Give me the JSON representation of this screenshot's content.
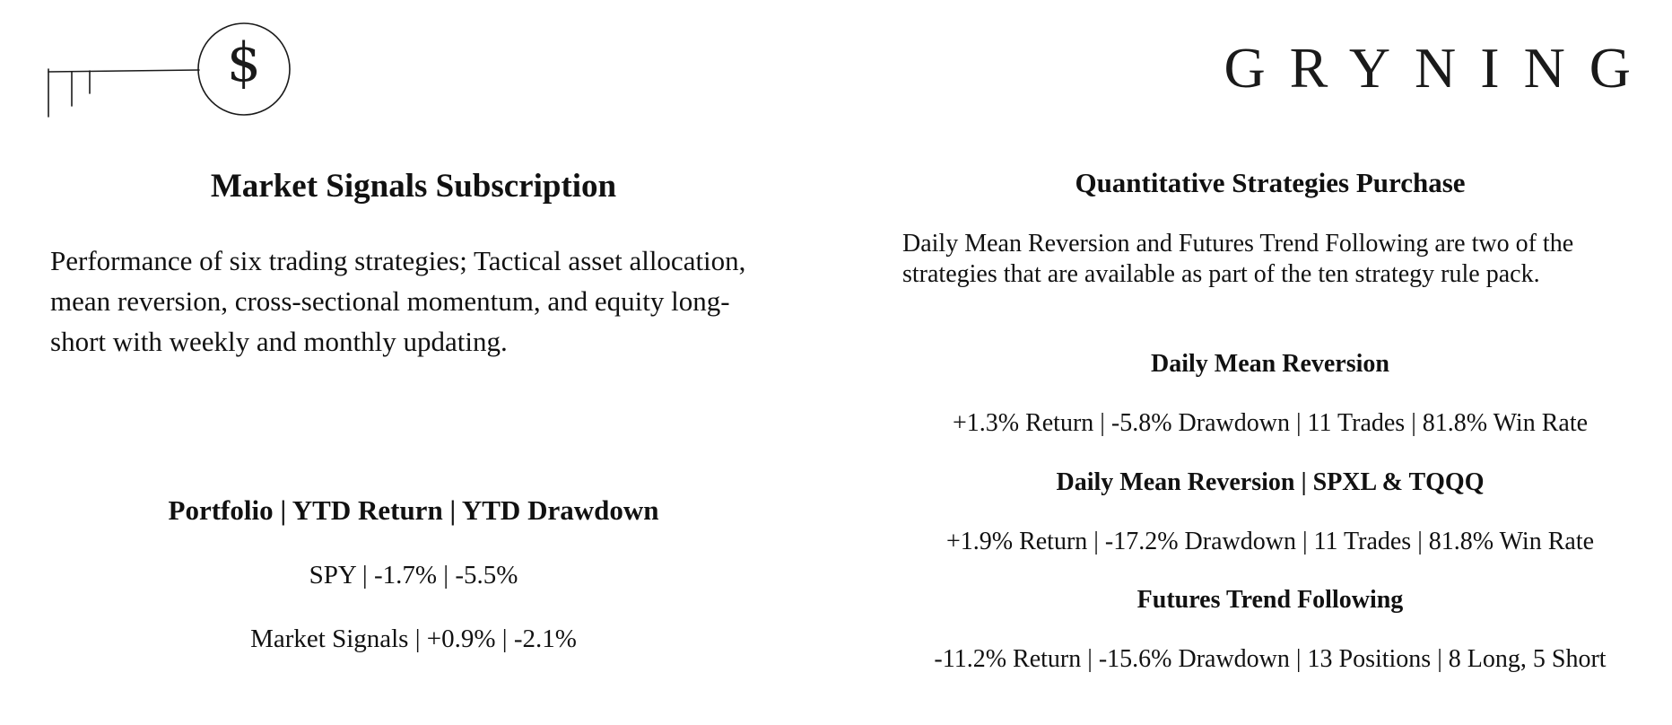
{
  "brand": {
    "name": "GRYNING",
    "logo_icon": "key-dollar-icon"
  },
  "left": {
    "title": "Market Signals Subscription",
    "description": "Performance of six trading strategies; Tactical asset allocation, mean reversion, cross-sectional momentum, and equity long-short with weekly and monthly updating.",
    "table_header": "Portfolio | YTD Return | YTD Drawdown",
    "rows": [
      "SPY | -1.7% | -5.5%",
      "Market Signals | +0.9% | -2.1%"
    ]
  },
  "right": {
    "title": "Quantitative Strategies Purchase",
    "description": "Daily Mean Reversion and Futures Trend Following are two of the strategies that are available as part of the ten strategy rule pack.",
    "strategies": [
      {
        "name": "Daily Mean Reversion",
        "stats": "+1.3% Return | -5.8% Drawdown | 11 Trades | 81.8% Win Rate"
      },
      {
        "name": "Daily Mean Reversion | SPXL & TQQQ",
        "stats": "+1.9% Return | -17.2% Drawdown | 11 Trades | 81.8% Win Rate"
      },
      {
        "name": "Futures Trend Following",
        "stats": "-11.2% Return | -15.6% Drawdown | 13 Positions | 8 Long, 5 Short"
      }
    ]
  }
}
